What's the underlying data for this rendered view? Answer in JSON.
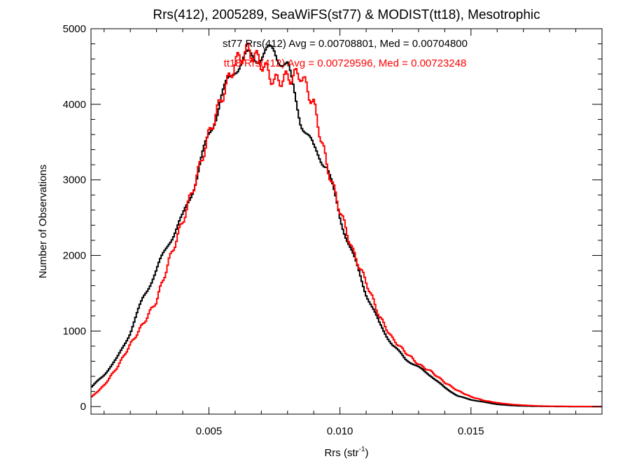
{
  "chart_data": {
    "type": "histogram",
    "title": "Rrs(412), 2005289, SeaWiFS(st77) & MODIST(tt18), Mesotrophic",
    "xlabel": "Rrs (str",
    "xlabel_superscript": "-1",
    "xlabel_suffix": ")",
    "ylabel": "Number of Observations",
    "xlim": [
      0.0005,
      0.02
    ],
    "ylim": [
      -100,
      5000
    ],
    "x_ticks": [
      {
        "value": 0.005,
        "label": "0.005"
      },
      {
        "value": 0.01,
        "label": "0.010"
      },
      {
        "value": 0.015,
        "label": "0.015"
      }
    ],
    "y_ticks": [
      {
        "value": 0,
        "label": "0"
      },
      {
        "value": 1000,
        "label": "1000"
      },
      {
        "value": 2000,
        "label": "2000"
      },
      {
        "value": 3000,
        "label": "3000"
      },
      {
        "value": 4000,
        "label": "4000"
      },
      {
        "value": 5000,
        "label": "5000"
      }
    ],
    "grid": false,
    "series": [
      {
        "id": "st77",
        "color": "#000000",
        "stats_label": "st77 Rrs(412) Avg = 0.00708801, Med = 0.00704800",
        "points": [
          [
            0.0005,
            250
          ],
          [
            0.001,
            420
          ],
          [
            0.0015,
            640
          ],
          [
            0.002,
            980
          ],
          [
            0.0025,
            1450
          ],
          [
            0.003,
            1800
          ],
          [
            0.0035,
            2200
          ],
          [
            0.004,
            2500
          ],
          [
            0.0045,
            3000
          ],
          [
            0.005,
            3600
          ],
          [
            0.0055,
            4100
          ],
          [
            0.006,
            4500
          ],
          [
            0.0065,
            4620
          ],
          [
            0.007,
            4650
          ],
          [
            0.0075,
            4700
          ],
          [
            0.008,
            4500
          ],
          [
            0.0085,
            3800
          ],
          [
            0.009,
            3400
          ],
          [
            0.0095,
            3200
          ],
          [
            0.01,
            2500
          ],
          [
            0.0105,
            2000
          ],
          [
            0.011,
            1500
          ],
          [
            0.0115,
            1100
          ],
          [
            0.012,
            820
          ],
          [
            0.0125,
            630
          ],
          [
            0.013,
            520
          ],
          [
            0.0135,
            400
          ],
          [
            0.014,
            250
          ],
          [
            0.0145,
            140
          ],
          [
            0.015,
            90
          ],
          [
            0.0155,
            60
          ],
          [
            0.016,
            30
          ],
          [
            0.0165,
            15
          ],
          [
            0.017,
            8
          ],
          [
            0.0175,
            4
          ],
          [
            0.018,
            2
          ],
          [
            0.019,
            0
          ],
          [
            0.02,
            0
          ]
        ]
      },
      {
        "id": "tt18",
        "color": "#ff0000",
        "stats_label": "tt18 Rrs(412) Avg = 0.00729596, Med = 0.00723248",
        "points": [
          [
            0.0005,
            120
          ],
          [
            0.001,
            280
          ],
          [
            0.0015,
            520
          ],
          [
            0.002,
            820
          ],
          [
            0.0025,
            1100
          ],
          [
            0.003,
            1400
          ],
          [
            0.0035,
            1950
          ],
          [
            0.004,
            2450
          ],
          [
            0.0045,
            3000
          ],
          [
            0.005,
            3600
          ],
          [
            0.0055,
            4100
          ],
          [
            0.006,
            4550
          ],
          [
            0.0065,
            4720
          ],
          [
            0.007,
            4550
          ],
          [
            0.0075,
            4300
          ],
          [
            0.008,
            4350
          ],
          [
            0.0085,
            4400
          ],
          [
            0.009,
            4000
          ],
          [
            0.0095,
            3200
          ],
          [
            0.01,
            2600
          ],
          [
            0.0105,
            2050
          ],
          [
            0.011,
            1650
          ],
          [
            0.0115,
            1200
          ],
          [
            0.012,
            900
          ],
          [
            0.0125,
            720
          ],
          [
            0.013,
            560
          ],
          [
            0.0135,
            460
          ],
          [
            0.014,
            320
          ],
          [
            0.0145,
            210
          ],
          [
            0.015,
            130
          ],
          [
            0.0155,
            80
          ],
          [
            0.016,
            50
          ],
          [
            0.0165,
            30
          ],
          [
            0.017,
            18
          ],
          [
            0.0175,
            10
          ],
          [
            0.018,
            5
          ],
          [
            0.019,
            2
          ],
          [
            0.02,
            0
          ]
        ]
      }
    ]
  }
}
